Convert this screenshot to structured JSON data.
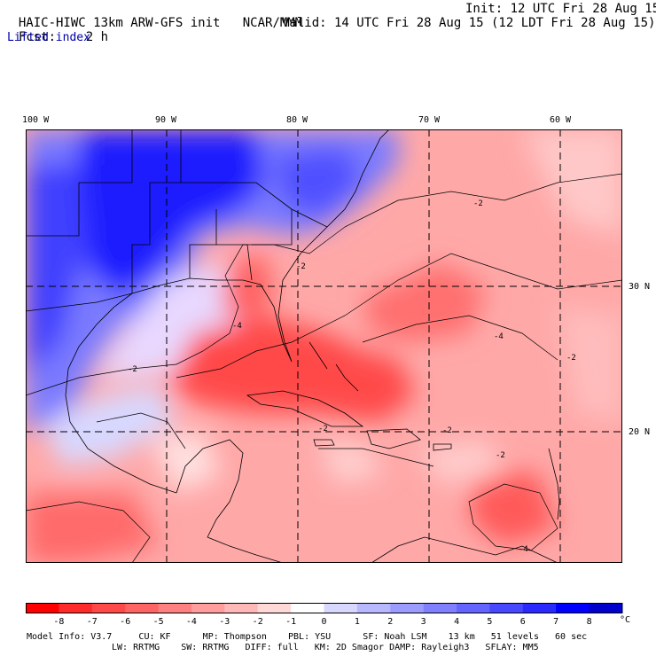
{
  "header": {
    "title": "HAIC-HIWC 13km ARW-GFS init",
    "org": "NCAR/MMM",
    "init": "Init: 12 UTC Fri 28 Aug 15",
    "fcst_label": "Fcst:",
    "fcst_value": "2 h",
    "valid": "Valid: 14 UTC Fri 28 Aug 15 (12 LDT Fri 28 Aug 15)",
    "field": "Lifted index"
  },
  "map": {
    "lon_labels": [
      "100 W",
      "90 W",
      "80 W",
      "70 W",
      "60 W"
    ],
    "lat_labels": [
      "30 N",
      "20 N"
    ],
    "contour_labels": [
      "-2",
      "-2",
      "-2",
      "-4",
      "-4",
      "-2",
      "-2",
      "-2",
      "-2",
      "-4"
    ]
  },
  "colorbar": {
    "ticks": [
      "-8",
      "-7",
      "-6",
      "-5",
      "-4",
      "-3",
      "-2",
      "-1",
      "0",
      "1",
      "2",
      "3",
      "4",
      "5",
      "6",
      "7",
      "8"
    ],
    "unit": "°C",
    "colors": [
      "#ff0000",
      "#ff2a2a",
      "#ff4848",
      "#ff6464",
      "#ff8080",
      "#ff9c9c",
      "#ffb8b8",
      "#ffd8d8",
      "#ffffff",
      "#d8d8ff",
      "#b8b8ff",
      "#9c9cff",
      "#8080ff",
      "#6464ff",
      "#4848ff",
      "#2a2aff",
      "#0000ff"
    ]
  },
  "model_info": {
    "line1": "Model Info: V3.7     CU: KF      MP: Thompson    PBL: YSU      SF: Noah LSM    13 km   51 levels   60 sec",
    "line2": "LW: RRTMG    SW: RRTMG   DIFF: full   KM: 2D Smagor DAMP: Rayleigh3   SFLAY: MM5"
  }
}
